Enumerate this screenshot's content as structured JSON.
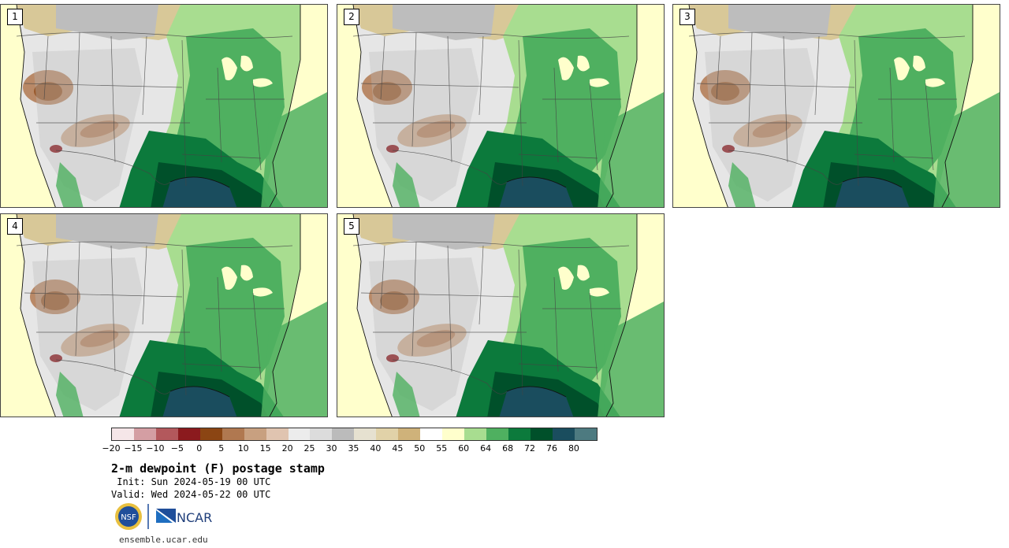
{
  "panels": [
    {
      "label": "1"
    },
    {
      "label": "2"
    },
    {
      "label": "3"
    },
    {
      "label": "4"
    },
    {
      "label": "5"
    }
  ],
  "legend": {
    "colors": [
      "#f5e6e8",
      "#d49ea3",
      "#b3585c",
      "#8b1a1e",
      "#8b4513",
      "#b07850",
      "#c8a080",
      "#e0c4b0",
      "#ececec",
      "#dcdcdc",
      "#bbbbbb",
      "#e6e1d0",
      "#e1d2a8",
      "#cfb27a",
      "#ffffff",
      "#ffffcc",
      "#a8dd90",
      "#4fb060",
      "#0c7a3c",
      "#00502a",
      "#1a4d5e",
      "#4d7a80"
    ],
    "ticks": [
      "−20",
      "−15",
      "−10",
      "−5",
      "0",
      "5",
      "10",
      "15",
      "20",
      "25",
      "30",
      "35",
      "40",
      "45",
      "50",
      "55",
      "60",
      "64",
      "68",
      "72",
      "76",
      "80"
    ]
  },
  "title": "2-m dewpoint (F) postage stamp",
  "init": " Init: Sun 2024-05-19 00 UTC",
  "valid": "Valid: Wed 2024-05-22 00 UTC",
  "logos": {
    "nsf_text": "NSF",
    "ncar_text": "NCAR"
  },
  "site": "ensemble.ucar.edu"
}
